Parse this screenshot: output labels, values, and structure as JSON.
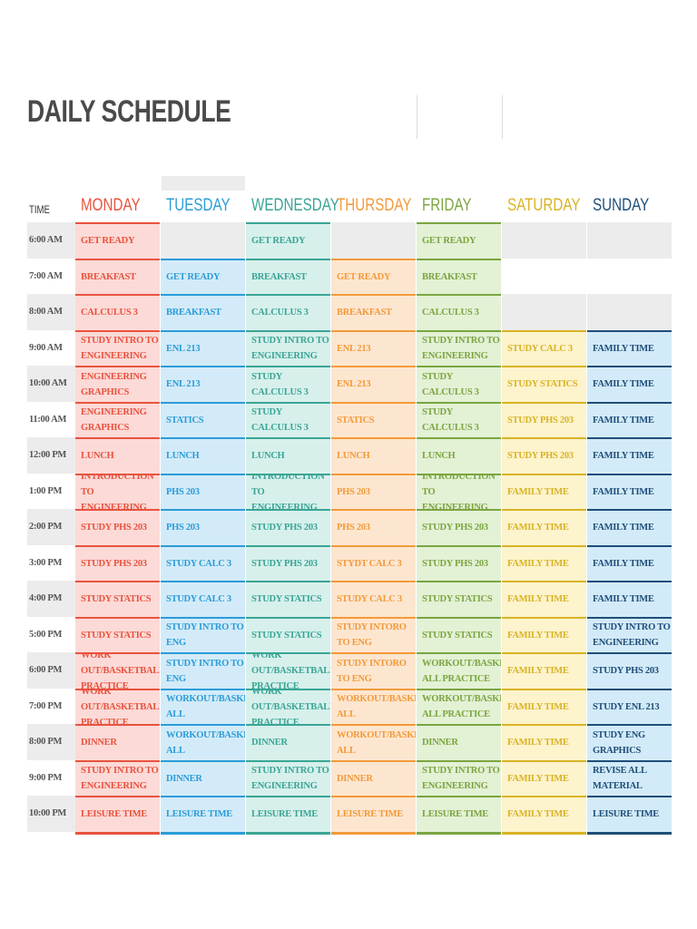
{
  "title": "DAILY SCHEDULE",
  "time_header": "TIME",
  "days": [
    {
      "name": "MONDAY",
      "color": "#e8533f",
      "bg": "#fcdad7"
    },
    {
      "name": "TUESDAY",
      "color": "#2b9cd8",
      "bg": "#d3ebf8"
    },
    {
      "name": "WEDNESDAY",
      "color": "#3aa595",
      "bg": "#d7f0ec"
    },
    {
      "name": "THURSDAY",
      "color": "#f29a3a",
      "bg": "#fde6d0"
    },
    {
      "name": "FRIDAY",
      "color": "#7ba540",
      "bg": "#e3f1d5"
    },
    {
      "name": "SATURDAY",
      "color": "#d9b325",
      "bg": "#fdf3cc"
    },
    {
      "name": "SUNDAY",
      "color": "#1f4e79",
      "bg": "#d3ebf8"
    }
  ],
  "rows": [
    {
      "time": "6:00 AM",
      "cells": [
        "GET READY",
        "",
        "GET READY",
        "",
        "GET READY",
        "",
        ""
      ]
    },
    {
      "time": "7:00 AM",
      "cells": [
        "BREAKFAST",
        "GET READY",
        "BREAKFAST",
        "GET READY",
        "BREAKFAST",
        "",
        ""
      ]
    },
    {
      "time": "8:00 AM",
      "cells": [
        "CALCULUS 3",
        "BREAKFAST",
        "CALCULUS 3",
        "BREAKFAST",
        "CALCULUS 3",
        "",
        ""
      ]
    },
    {
      "time": "9:00 AM",
      "cells": [
        "STUDY INTRO TO ENGINEERING",
        "ENL 213",
        "STUDY INTRO TO ENGINEERING",
        "ENL 213",
        "STUDY INTRO TO ENGINEERING",
        "STUDY CALC 3",
        "FAMILY TIME"
      ]
    },
    {
      "time": "10:00 AM",
      "cells": [
        "ENGINEERING GRAPHICS",
        "ENL 213",
        "STUDY CALCULUS 3",
        "ENL 213",
        "STUDY CALCULUS 3",
        "STUDY STATICS",
        "FAMILY TIME"
      ]
    },
    {
      "time": "11:00 AM",
      "cells": [
        "ENGINEERING GRAPHICS",
        "STATICS",
        "STUDY CALCULUS 3",
        "STATICS",
        "STUDY CALCULUS 3",
        "STUDY PHS 203",
        "FAMILY TIME"
      ]
    },
    {
      "time": "12:00 PM",
      "cells": [
        "LUNCH",
        "LUNCH",
        "LUNCH",
        "LUNCH",
        "LUNCH",
        "STUDY PHS 203",
        "FAMILY TIME"
      ]
    },
    {
      "time": "1:00 PM",
      "cells": [
        "INTRODUCTION TO ENGINEERING",
        "PHS 203",
        "INTRODUCTION TO ENGINEERING",
        "PHS 203",
        "INTRODUCTION TO ENGINEERING",
        "FAMILY TIME",
        "FAMILY TIME"
      ]
    },
    {
      "time": "2:00 PM",
      "cells": [
        "STUDY PHS 203",
        "PHS 203",
        "STUDY PHS 203",
        "PHS 203",
        "STUDY PHS 203",
        "FAMILY TIME",
        "FAMILY TIME"
      ]
    },
    {
      "time": "3:00 PM",
      "cells": [
        "STUDY PHS 203",
        "STUDY CALC 3",
        "STUDY PHS 203",
        "STYDT CALC 3",
        "STUDY PHS 203",
        "FAMILY TIME",
        "FAMILY TIME"
      ]
    },
    {
      "time": "4:00 PM",
      "cells": [
        "STUDY STATICS",
        "STUDY CALC 3",
        "STUDY STATICS",
        "STUDY CALC 3",
        "STUDY STATICS",
        "FAMILY TIME",
        "FAMILY TIME"
      ]
    },
    {
      "time": "5:00 PM",
      "cells": [
        "STUDY STATICS",
        "STUDY INTRO TO ENG",
        "STUDY STATICS",
        "STUDY INTORO TO ENG",
        "STUDY STATICS",
        "FAMILY TIME",
        "STUDY INTRO TO ENGINEERING"
      ]
    },
    {
      "time": "6:00 PM",
      "cells": [
        "WORK OUT/BASKETBALL PRACTICE",
        "STUDY INTRO TO ENG",
        "WORK OUT/BASKETBALL PRACTICE",
        "STUDY INTORO TO ENG",
        "WORKOUT/BASKETB ALL PRACTICE",
        "FAMILY TIME",
        "STUDY PHS 203"
      ]
    },
    {
      "time": "7:00 PM",
      "cells": [
        "WORK OUT/BASKETBALL PRACTICE",
        "WORKOUT/BASKETB ALL",
        "WORK OUT/BASKETBALL PRACTICE",
        "WORKOUT/BASKETB ALL",
        "WORKOUT/BASKETB ALL PRACTICE",
        "FAMILY TIME",
        "STUDY ENL 213"
      ]
    },
    {
      "time": "8:00 PM",
      "cells": [
        "DINNER",
        "WORKOUT/BASKETB ALL",
        "DINNER",
        "WORKOUT/BASKETB ALL",
        "DINNER",
        "FAMILY TIME",
        "STUDY ENG GRAPHICS"
      ]
    },
    {
      "time": "9:00 PM",
      "cells": [
        "STUDY INTRO TO ENGINEERING",
        "DINNER",
        "STUDY INTRO TO ENGINEERING",
        "DINNER",
        "STUDY INTRO TO ENGINEERING",
        "FAMILY TIME",
        "REVISE ALL MATERIAL"
      ]
    },
    {
      "time": "10:00 PM",
      "cells": [
        "LEISURE TIME",
        "LEISURE TIME",
        "LEISURE TIME",
        "LEISURE TIME",
        "LEISURE TIME",
        "FAMILY TIME",
        "LEISURE TIME"
      ]
    }
  ]
}
